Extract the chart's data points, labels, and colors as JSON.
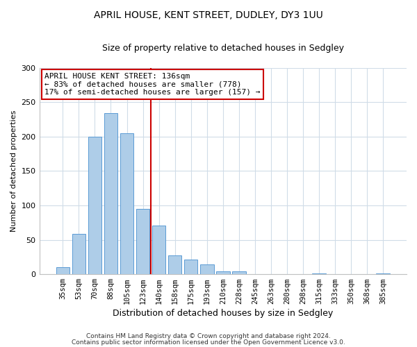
{
  "title1": "APRIL HOUSE, KENT STREET, DUDLEY, DY3 1UU",
  "title2": "Size of property relative to detached houses in Sedgley",
  "xlabel": "Distribution of detached houses by size in Sedgley",
  "ylabel": "Number of detached properties",
  "bar_labels": [
    "35sqm",
    "53sqm",
    "70sqm",
    "88sqm",
    "105sqm",
    "123sqm",
    "140sqm",
    "158sqm",
    "175sqm",
    "193sqm",
    "210sqm",
    "228sqm",
    "245sqm",
    "263sqm",
    "280sqm",
    "298sqm",
    "315sqm",
    "333sqm",
    "350sqm",
    "368sqm",
    "385sqm"
  ],
  "bar_values": [
    10,
    59,
    200,
    234,
    205,
    95,
    71,
    27,
    21,
    14,
    4,
    4,
    0,
    0,
    0,
    0,
    1,
    0,
    0,
    0,
    1
  ],
  "bar_color": "#aecde8",
  "bar_edge_color": "#5b9bd5",
  "vline_color": "#cc0000",
  "ylim": [
    0,
    300
  ],
  "yticks": [
    0,
    50,
    100,
    150,
    200,
    250,
    300
  ],
  "annotation_title": "APRIL HOUSE KENT STREET: 136sqm",
  "annotation_line1": "← 83% of detached houses are smaller (778)",
  "annotation_line2": "17% of semi-detached houses are larger (157) →",
  "annotation_box_color": "#ffffff",
  "annotation_box_edge_color": "#cc0000",
  "footer1": "Contains HM Land Registry data © Crown copyright and database right 2024.",
  "footer2": "Contains public sector information licensed under the Open Government Licence v3.0.",
  "grid_color": "#d0dce8",
  "title1_fontsize": 10,
  "title2_fontsize": 9,
  "xlabel_fontsize": 9,
  "ylabel_fontsize": 8,
  "tick_fontsize": 7.5,
  "footer_fontsize": 6.5,
  "ann_fontsize": 8
}
